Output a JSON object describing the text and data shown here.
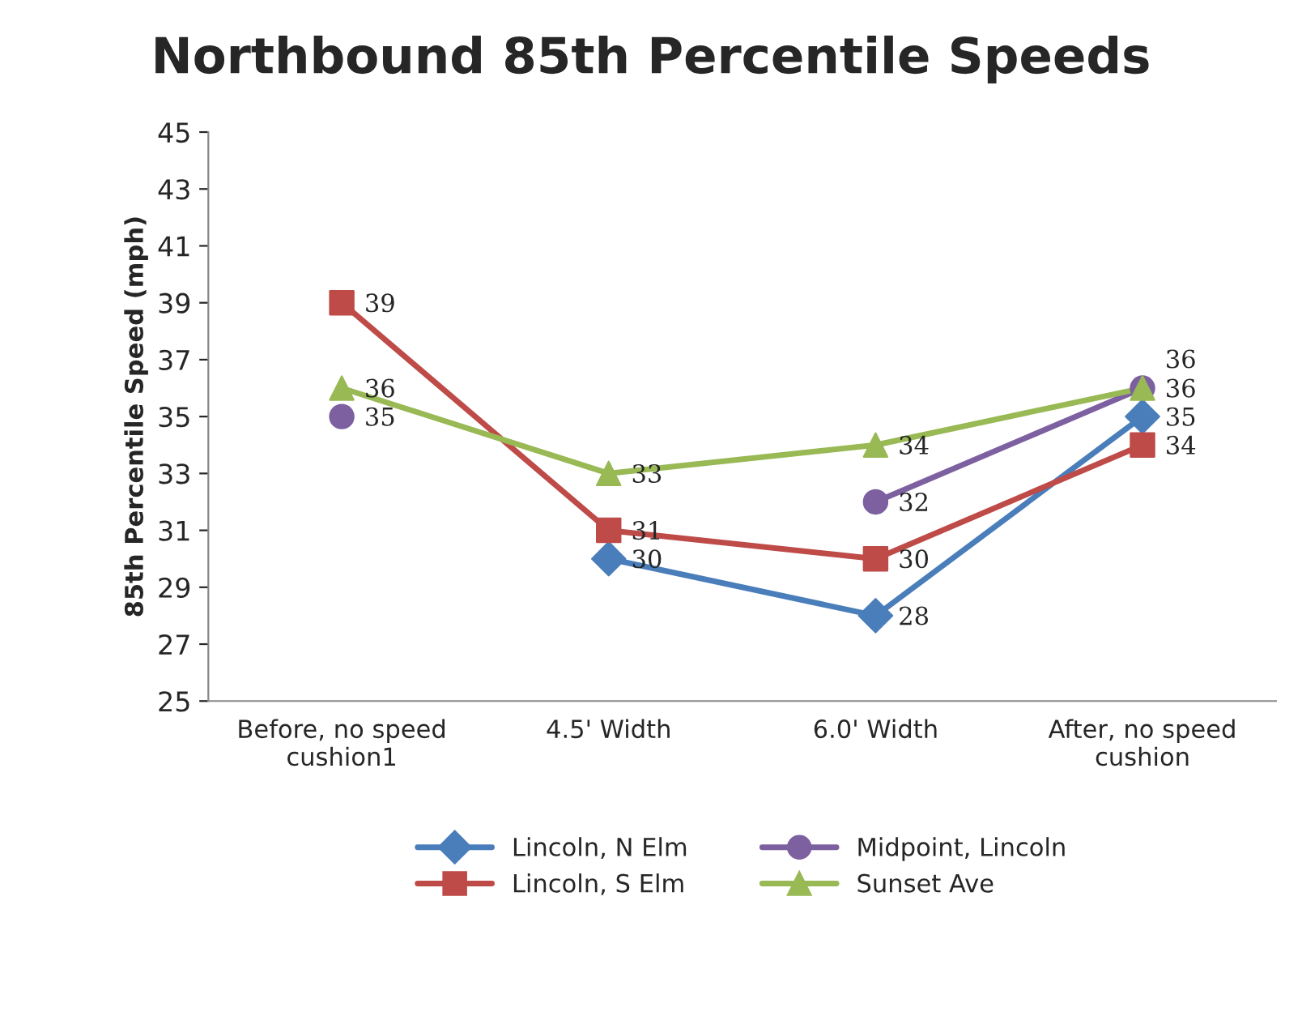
{
  "chart_data": {
    "type": "line",
    "title": "Northbound 85th Percentile Speeds",
    "ylabel": "85th Percentile Speed (mph)",
    "categories": [
      "Before, no speed\ncushion1",
      "4.5' Width",
      "6.0' Width",
      "After, no speed\ncushion"
    ],
    "series": [
      {
        "name": "Lincoln, N Elm",
        "color": "#4a7ebb",
        "marker": "diamond",
        "values": [
          null,
          30,
          28,
          35
        ]
      },
      {
        "name": "Lincoln, S Elm",
        "color": "#be4b48",
        "marker": "square",
        "values": [
          39,
          31,
          30,
          34
        ]
      },
      {
        "name": "Midpoint, Lincoln",
        "color": "#7d60a0",
        "marker": "circle",
        "values": [
          35,
          null,
          32,
          36
        ]
      },
      {
        "name": "Sunset Ave",
        "color": "#98b954",
        "marker": "triangle",
        "values": [
          36,
          33,
          34,
          36
        ]
      }
    ],
    "ylim": [
      25,
      45
    ],
    "yticks": [
      25,
      27,
      29,
      31,
      33,
      35,
      37,
      39,
      41,
      43,
      45
    ],
    "grid": false,
    "legend": "bottom",
    "data_labels": true,
    "line_style": "solid"
  }
}
